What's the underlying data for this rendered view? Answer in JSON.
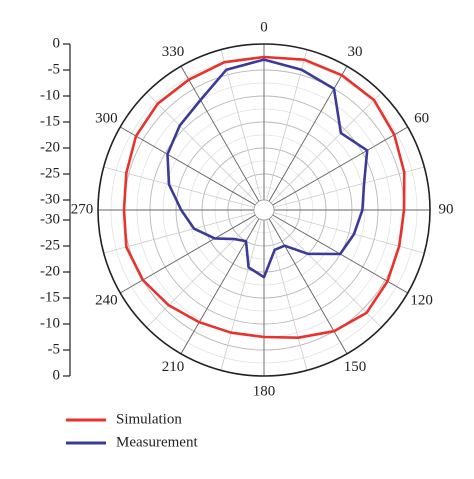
{
  "chart_data": {
    "type": "polar",
    "theta": [
      0,
      15,
      30,
      45,
      60,
      75,
      90,
      105,
      120,
      135,
      150,
      165,
      180,
      195,
      210,
      225,
      240,
      255,
      270,
      285,
      300,
      315,
      330,
      345
    ],
    "series": [
      {
        "name": "Simulation",
        "color": "#e8322b",
        "values": [
          -2.5,
          -2,
          -2,
          -2,
          -3,
          -4,
          -5,
          -5,
          -4.5,
          -4,
          -5,
          -6.5,
          -7.5,
          -7.5,
          -7,
          -6,
          -5,
          -4.5,
          -5,
          -4.5,
          -3.5,
          -3,
          -3,
          -2.5
        ]
      },
      {
        "name": "Measurement",
        "color": "#3a3a9a",
        "values": [
          -3,
          -4,
          -5,
          -11,
          -9,
          -12,
          -13,
          -14,
          -15,
          -20,
          -24,
          -24,
          -19,
          -20.5,
          -25,
          -24,
          -21,
          -18,
          -16,
          -13,
          -10.5,
          -9,
          -7.5,
          -4
        ]
      }
    ],
    "rlim": [
      -30,
      0
    ],
    "rticks": [
      -30,
      -25,
      -20,
      -15,
      -10,
      -5,
      0
    ],
    "thetaticks": [
      0,
      30,
      60,
      90,
      120,
      150,
      180,
      210,
      240,
      270,
      300,
      330
    ],
    "grid": true
  }
}
